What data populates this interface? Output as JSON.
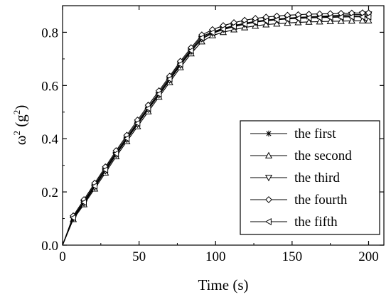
{
  "chart_data": {
    "type": "line",
    "xlabel": "Time (s)",
    "ylabel_main": "ω",
    "ylabel_exp1": "2",
    "ylabel_mid": " (g",
    "ylabel_exp2": "2",
    "ylabel_end": ")",
    "xlim": [
      0,
      210
    ],
    "ylim": [
      0,
      0.9
    ],
    "x_ticks": [
      0,
      50,
      100,
      150,
      200
    ],
    "y_ticks": [
      0.0,
      0.2,
      0.4,
      0.6,
      0.8
    ],
    "x_tick_labels": [
      "0",
      "50",
      "100",
      "150",
      "200"
    ],
    "y_tick_labels": [
      "0.0",
      "0.2",
      "0.4",
      "0.6",
      "0.8"
    ],
    "grid": false,
    "legend_position": "lower-right",
    "x": [
      0,
      7,
      14,
      21,
      28,
      35,
      42,
      49,
      56,
      63,
      70,
      77,
      84,
      91,
      98,
      105,
      112,
      119,
      126,
      133,
      140,
      147,
      154,
      161,
      168,
      175,
      182,
      189,
      196,
      200
    ],
    "series": [
      {
        "name": "the first",
        "marker": "star",
        "values": [
          0.0,
          0.105,
          0.165,
          0.227,
          0.288,
          0.349,
          0.406,
          0.463,
          0.519,
          0.573,
          0.629,
          0.685,
          0.736,
          0.785,
          0.801,
          0.815,
          0.825,
          0.834,
          0.841,
          0.846,
          0.85,
          0.853,
          0.855,
          0.857,
          0.858,
          0.859,
          0.86,
          0.861,
          0.862,
          0.862
        ]
      },
      {
        "name": "the second",
        "marker": "triangle-up",
        "values": [
          0.0,
          0.097,
          0.153,
          0.212,
          0.272,
          0.333,
          0.39,
          0.446,
          0.502,
          0.557,
          0.612,
          0.668,
          0.72,
          0.765,
          0.788,
          0.8,
          0.81,
          0.818,
          0.824,
          0.829,
          0.832,
          0.835,
          0.837,
          0.839,
          0.84,
          0.841,
          0.842,
          0.843,
          0.844,
          0.844
        ]
      },
      {
        "name": "the third",
        "marker": "triangle-down",
        "values": [
          0.0,
          0.101,
          0.158,
          0.218,
          0.279,
          0.34,
          0.397,
          0.454,
          0.51,
          0.564,
          0.62,
          0.676,
          0.728,
          0.775,
          0.796,
          0.81,
          0.821,
          0.83,
          0.838,
          0.844,
          0.849,
          0.853,
          0.856,
          0.858,
          0.86,
          0.862,
          0.864,
          0.866,
          0.867,
          0.868
        ]
      },
      {
        "name": "the fourth",
        "marker": "diamond",
        "values": [
          0.0,
          0.11,
          0.171,
          0.233,
          0.294,
          0.355,
          0.413,
          0.47,
          0.526,
          0.58,
          0.635,
          0.691,
          0.742,
          0.79,
          0.81,
          0.825,
          0.836,
          0.845,
          0.852,
          0.857,
          0.861,
          0.864,
          0.866,
          0.868,
          0.869,
          0.87,
          0.871,
          0.872,
          0.873,
          0.873
        ]
      },
      {
        "name": "the fifth",
        "marker": "triangle-left",
        "values": [
          0.0,
          0.103,
          0.161,
          0.222,
          0.283,
          0.344,
          0.401,
          0.458,
          0.514,
          0.568,
          0.624,
          0.68,
          0.731,
          0.779,
          0.799,
          0.812,
          0.822,
          0.831,
          0.838,
          0.843,
          0.847,
          0.85,
          0.852,
          0.854,
          0.855,
          0.856,
          0.857,
          0.858,
          0.858,
          0.858
        ]
      }
    ]
  }
}
